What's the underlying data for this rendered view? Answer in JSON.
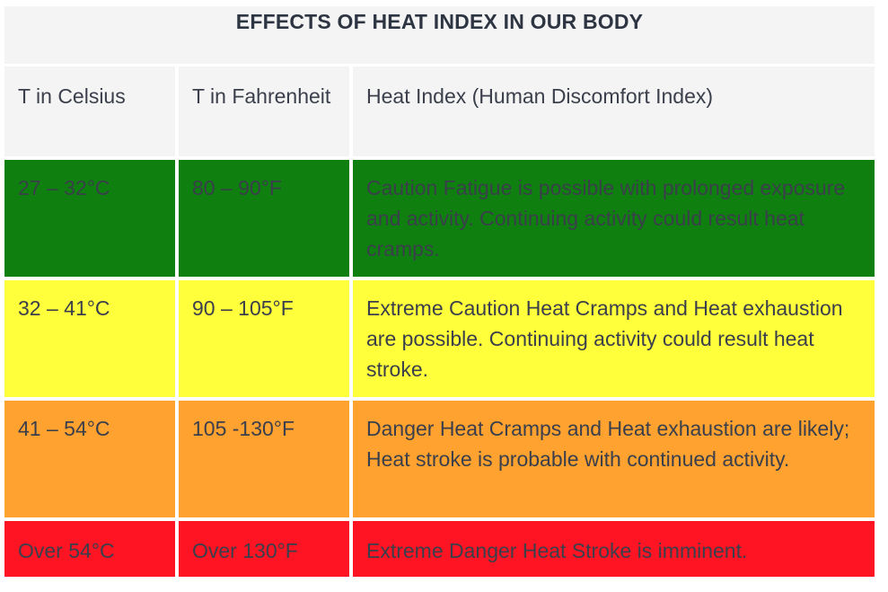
{
  "table": {
    "title": "EFFECTS OF HEAT INDEX IN OUR BODY",
    "headers": [
      "T in Celsius",
      "T in Fahrenheit",
      "Heat Index (Human Discomfort Index)"
    ],
    "rows": [
      {
        "celsius": "27 – 32°C",
        "fahrenheit": "80 – 90°F",
        "effect": "Caution Fatigue is possible with prolonged exposure and activity. Continuing activity could result heat cramps.",
        "color": "#0f7f0f"
      },
      {
        "celsius": "32 – 41°C",
        "fahrenheit": "90 – 105°F",
        "effect": "Extreme Caution Heat Cramps and Heat exhaustion are possible. Continuing activity could result heat stroke.",
        "color": "#ffff3b"
      },
      {
        "celsius": "41 – 54°C",
        "fahrenheit": "105 -130°F",
        "effect": "Danger Heat Cramps and Heat exhaustion are likely; Heat stroke is probable with continued activity.",
        "color": "#ffa230"
      },
      {
        "celsius": "Over 54°C",
        "fahrenheit": "Over 130°F",
        "effect": "Extreme Danger Heat Stroke is imminent.",
        "color": "#ff1423"
      }
    ]
  }
}
